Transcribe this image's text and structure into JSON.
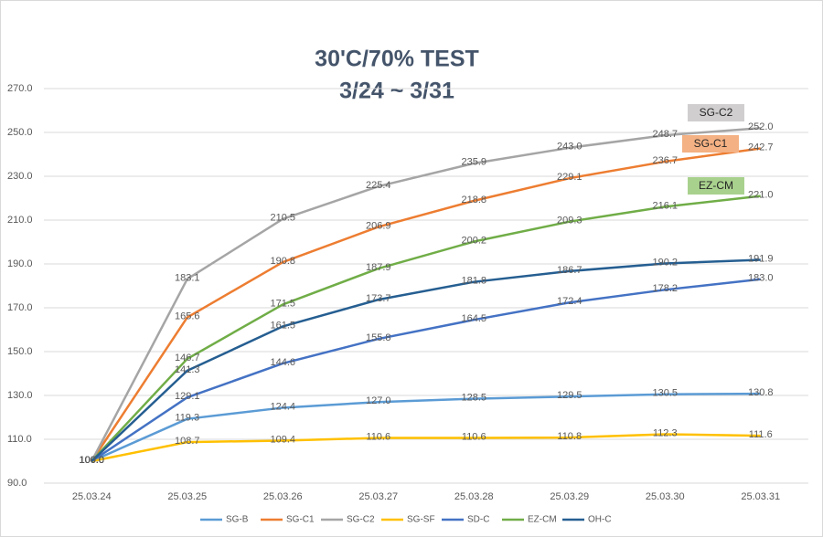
{
  "chart_data": {
    "type": "line",
    "title": "30'C/70% TEST",
    "subtitle": "3/24 ~ 3/31",
    "categories": [
      "25.03.24",
      "25.03.25",
      "25.03.26",
      "25.03.27",
      "25.03.28",
      "25.03.29",
      "25.03.30",
      "25.03.31"
    ],
    "ylim": [
      90,
      270
    ],
    "yticks": [
      {
        "value": 90,
        "label": "90.0"
      },
      {
        "value": 110,
        "label": "110.0"
      },
      {
        "value": 130,
        "label": "130.0"
      },
      {
        "value": 150,
        "label": "150.0"
      },
      {
        "value": 170,
        "label": "170.0"
      },
      {
        "value": 190,
        "label": "190.0"
      },
      {
        "value": 210,
        "label": "210.0"
      },
      {
        "value": 230,
        "label": "230.0"
      },
      {
        "value": 250,
        "label": "250.0"
      },
      {
        "value": 270,
        "label": "270.0"
      }
    ],
    "grid": true,
    "legend": "bottom",
    "series": [
      {
        "name": "SG-B",
        "color": "#5b9bd5",
        "values": [
          100,
          119.3,
          124.4,
          127,
          128.5,
          129.5,
          130.5,
          130.8
        ],
        "value_labels": [
          "100.0",
          "119.3",
          "124.4",
          "127.0",
          "128.5",
          "129.5",
          "130.5",
          "130.8"
        ]
      },
      {
        "name": "SG-C1",
        "color": "#ed7d31",
        "values": [
          100,
          165.6,
          190.8,
          206.9,
          218.8,
          229.1,
          236.7,
          242.7
        ],
        "value_labels": [
          "100.0",
          "165.6",
          "190.8",
          "206.9",
          "218.8",
          "229.1",
          "236.7",
          "242.7"
        ]
      },
      {
        "name": "SG-C2",
        "color": "#a5a5a5",
        "values": [
          100,
          183.1,
          210.5,
          225.4,
          235.9,
          243,
          248.7,
          252
        ],
        "value_labels": [
          "100.0",
          "183.1",
          "210.5",
          "225.4",
          "235.9",
          "243.0",
          "248.7",
          "252.0"
        ]
      },
      {
        "name": "SG-SF",
        "color": "#ffc000",
        "values": [
          100,
          108.7,
          109.4,
          110.6,
          110.6,
          110.8,
          112.3,
          111.6
        ],
        "value_labels": [
          "100.0",
          "108.7",
          "109.4",
          "110.6",
          "110.6",
          "110.8",
          "112.3",
          "111.6"
        ]
      },
      {
        "name": "SD-C",
        "color": "#4472c4",
        "values": [
          100,
          129.1,
          144.6,
          155.8,
          164.5,
          172.4,
          178.2,
          183
        ],
        "value_labels": [
          "100.0",
          "129.1",
          "144.6",
          "155.8",
          "164.5",
          "172.4",
          "178.2",
          "183.0"
        ]
      },
      {
        "name": "EZ-CM",
        "color": "#70ad47",
        "values": [
          100,
          146.7,
          171.5,
          187.9,
          200.2,
          209.3,
          216.1,
          221
        ],
        "value_labels": [
          "100.0",
          "146.7",
          "171.5",
          "187.9",
          "200.2",
          "209.3",
          "216.1",
          "221.0"
        ]
      },
      {
        "name": "OH-C",
        "color": "#255e91",
        "values": [
          100,
          141.3,
          161.5,
          173.7,
          181.8,
          186.7,
          190.2,
          191.9
        ],
        "value_labels": [
          "100.0",
          "141.3",
          "161.5",
          "173.7",
          "181.8",
          "186.7",
          "190.2",
          "191.9"
        ]
      }
    ],
    "annotations": [
      {
        "text": "SG-C2",
        "color": "#d0cece"
      },
      {
        "text": "SG-C1",
        "color": "#f4b183"
      },
      {
        "text": "EZ-CM",
        "color": "#a9d18e"
      }
    ]
  }
}
